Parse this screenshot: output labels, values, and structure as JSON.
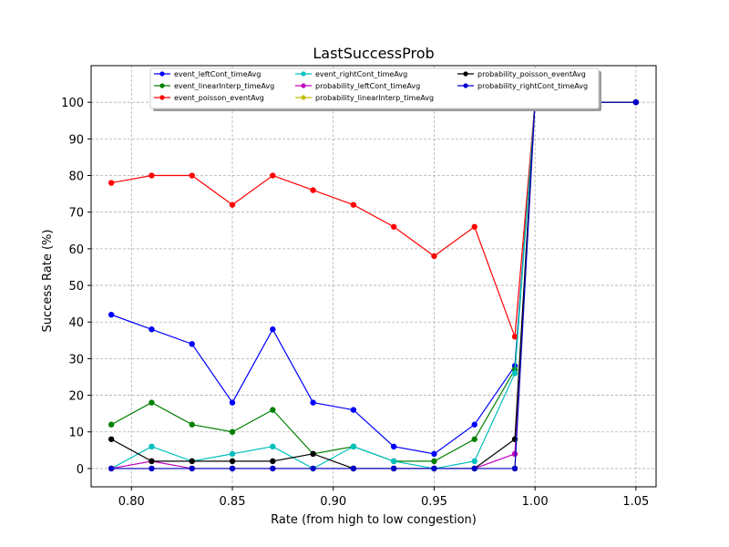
{
  "chart_data": {
    "type": "line",
    "title": "LastSuccessProb",
    "xlabel": "Rate (from high to low congestion)",
    "ylabel": "Success Rate (%)",
    "xlim": [
      0.78,
      1.06
    ],
    "ylim": [
      -5,
      110
    ],
    "xticks": [
      0.8,
      0.85,
      0.9,
      0.95,
      1.0,
      1.05
    ],
    "xtick_labels": [
      "0.80",
      "0.85",
      "0.90",
      "0.95",
      "1.00",
      "1.05"
    ],
    "yticks": [
      0,
      10,
      20,
      30,
      40,
      50,
      60,
      70,
      80,
      90,
      100
    ],
    "ytick_labels": [
      "0",
      "10",
      "20",
      "30",
      "40",
      "50",
      "60",
      "70",
      "80",
      "90",
      "100"
    ],
    "grid": true,
    "legend_placement": "top-center",
    "legend_columns": 3,
    "x": [
      0.79,
      0.81,
      0.83,
      0.85,
      0.87,
      0.89,
      0.91,
      0.93,
      0.95,
      0.97,
      0.99,
      1.0,
      1.05
    ],
    "series": [
      {
        "name": "event_leftCont_timeAvg",
        "color": "#0000ff",
        "values": [
          42,
          38,
          34,
          18,
          38,
          18,
          16,
          6,
          4,
          12,
          28,
          100,
          100
        ]
      },
      {
        "name": "event_linearInterp_timeAvg",
        "color": "#008000",
        "values": [
          12,
          18,
          12,
          10,
          16,
          4,
          6,
          2,
          2,
          8,
          27,
          100,
          100
        ]
      },
      {
        "name": "event_poisson_eventAvg",
        "color": "#ff0000",
        "values": [
          78,
          80,
          80,
          72,
          80,
          76,
          72,
          66,
          58,
          66,
          36,
          100,
          100
        ]
      },
      {
        "name": "event_rightCont_timeAvg",
        "color": "#00bfbf",
        "values": [
          0,
          6,
          2,
          4,
          6,
          0,
          6,
          2,
          0,
          2,
          26,
          100,
          100
        ]
      },
      {
        "name": "probability_leftCont_timeAvg",
        "color": "#bf00bf",
        "values": [
          0,
          2,
          0,
          0,
          0,
          0,
          0,
          0,
          0,
          0,
          4,
          100,
          100
        ]
      },
      {
        "name": "probability_linearInterp_timeAvg",
        "color": "#bfbf00",
        "values": [
          0,
          0,
          0,
          0,
          0,
          0,
          0,
          0,
          0,
          0,
          0,
          100,
          100
        ]
      },
      {
        "name": "probability_poisson_eventAvg",
        "color": "#000000",
        "values": [
          8,
          2,
          2,
          2,
          2,
          4,
          0,
          0,
          0,
          0,
          8,
          100,
          100
        ]
      },
      {
        "name": "probability_rightCont_timeAvg",
        "color": "#0000cd",
        "values": [
          0,
          0,
          0,
          0,
          0,
          0,
          0,
          0,
          0,
          0,
          0,
          100,
          100
        ]
      }
    ]
  }
}
